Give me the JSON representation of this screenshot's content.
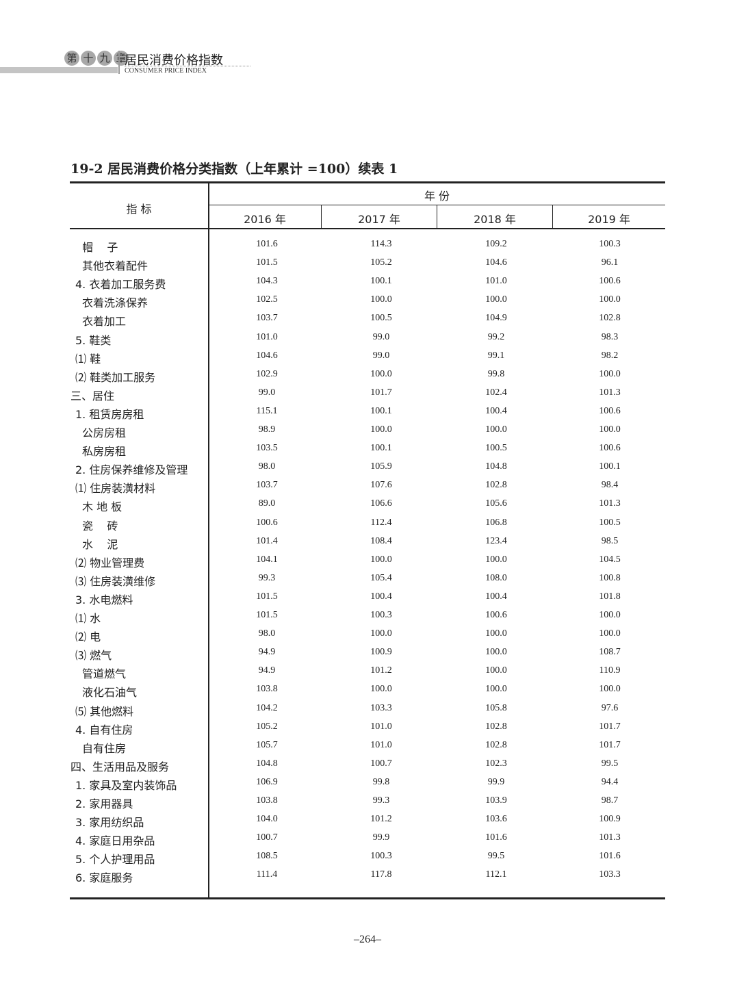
{
  "header": {
    "chapter_chars": [
      "第",
      "十",
      "九",
      "章"
    ],
    "chapter_title": "居民消费价格指数",
    "chapter_title_en": "CONSUMER PRICE INDEX"
  },
  "table": {
    "title": "19-2  居民消费价格分类指数（上年累计 =100）续表 1",
    "indicator_header": "指  标",
    "year_group_header": "年  份",
    "years": [
      "2016 年",
      "2017 年",
      "2018 年",
      "2019 年"
    ],
    "rows": [
      {
        "label": "帽    子",
        "level": 2,
        "values": [
          "101.6",
          "114.3",
          "109.2",
          "100.3"
        ]
      },
      {
        "label": "其他衣着配件",
        "level": 2,
        "values": [
          "101.5",
          "105.2",
          "104.6",
          "96.1"
        ]
      },
      {
        "label": "4. 衣着加工服务费",
        "level": 1,
        "values": [
          "104.3",
          "100.1",
          "101.0",
          "100.6"
        ]
      },
      {
        "label": "衣着洗涤保养",
        "level": 2,
        "values": [
          "102.5",
          "100.0",
          "100.0",
          "100.0"
        ]
      },
      {
        "label": "衣着加工",
        "level": 2,
        "values": [
          "103.7",
          "100.5",
          "104.9",
          "102.8"
        ]
      },
      {
        "label": "5. 鞋类",
        "level": 1,
        "values": [
          "101.0",
          "99.0",
          "99.2",
          "98.3"
        ]
      },
      {
        "label": "⑴ 鞋",
        "level": 1,
        "values": [
          "104.6",
          "99.0",
          "99.1",
          "98.2"
        ]
      },
      {
        "label": "⑵ 鞋类加工服务",
        "level": 1,
        "values": [
          "102.9",
          "100.0",
          "99.8",
          "100.0"
        ]
      },
      {
        "label": "三、居住",
        "level": 0,
        "values": [
          "99.0",
          "101.7",
          "102.4",
          "101.3"
        ]
      },
      {
        "label": "1. 租赁房房租",
        "level": 1,
        "values": [
          "115.1",
          "100.1",
          "100.4",
          "100.6"
        ]
      },
      {
        "label": "公房房租",
        "level": 2,
        "values": [
          "98.9",
          "100.0",
          "100.0",
          "100.0"
        ]
      },
      {
        "label": "私房房租",
        "level": 2,
        "values": [
          "103.5",
          "100.1",
          "100.5",
          "100.6"
        ]
      },
      {
        "label": "2. 住房保养维修及管理",
        "level": 1,
        "values": [
          "98.0",
          "105.9",
          "104.8",
          "100.1"
        ]
      },
      {
        "label": "⑴ 住房装潢材料",
        "level": 1,
        "values": [
          "103.7",
          "107.6",
          "102.8",
          "98.4"
        ]
      },
      {
        "label": "木 地 板",
        "level": 2,
        "values": [
          "89.0",
          "106.6",
          "105.6",
          "101.3"
        ]
      },
      {
        "label": "瓷    砖",
        "level": 2,
        "values": [
          "100.6",
          "112.4",
          "106.8",
          "100.5"
        ]
      },
      {
        "label": "水    泥",
        "level": 2,
        "values": [
          "101.4",
          "108.4",
          "123.4",
          "98.5"
        ]
      },
      {
        "label": "⑵ 物业管理费",
        "level": 1,
        "values": [
          "104.1",
          "100.0",
          "100.0",
          "104.5"
        ]
      },
      {
        "label": "⑶ 住房装潢维修",
        "level": 1,
        "values": [
          "99.3",
          "105.4",
          "108.0",
          "100.8"
        ]
      },
      {
        "label": "3. 水电燃料",
        "level": 1,
        "values": [
          "101.5",
          "100.4",
          "100.4",
          "101.8"
        ]
      },
      {
        "label": "⑴ 水",
        "level": 1,
        "values": [
          "101.5",
          "100.3",
          "100.6",
          "100.0"
        ]
      },
      {
        "label": "⑵ 电",
        "level": 1,
        "values": [
          "98.0",
          "100.0",
          "100.0",
          "100.0"
        ]
      },
      {
        "label": "⑶ 燃气",
        "level": 1,
        "values": [
          "94.9",
          "100.9",
          "100.0",
          "108.7"
        ]
      },
      {
        "label": "管道燃气",
        "level": 2,
        "values": [
          "94.9",
          "101.2",
          "100.0",
          "110.9"
        ]
      },
      {
        "label": "液化石油气",
        "level": 2,
        "values": [
          "103.8",
          "100.0",
          "100.0",
          "100.0"
        ]
      },
      {
        "label": "⑸ 其他燃料",
        "level": 1,
        "values": [
          "104.2",
          "103.3",
          "105.8",
          "97.6"
        ]
      },
      {
        "label": "4. 自有住房",
        "level": 1,
        "values": [
          "105.2",
          "101.0",
          "102.8",
          "101.7"
        ]
      },
      {
        "label": "自有住房",
        "level": 2,
        "values": [
          "105.7",
          "101.0",
          "102.8",
          "101.7"
        ]
      },
      {
        "label": "四、生活用品及服务",
        "level": 0,
        "values": [
          "104.8",
          "100.7",
          "102.3",
          "99.5"
        ]
      },
      {
        "label": "1. 家具及室内装饰品",
        "level": 1,
        "values": [
          "106.9",
          "99.8",
          "99.9",
          "94.4"
        ]
      },
      {
        "label": "2. 家用器具",
        "level": 1,
        "values": [
          "103.8",
          "99.3",
          "103.9",
          "98.7"
        ]
      },
      {
        "label": "3. 家用纺织品",
        "level": 1,
        "values": [
          "104.0",
          "101.2",
          "103.6",
          "100.9"
        ]
      },
      {
        "label": "4. 家庭日用杂品",
        "level": 1,
        "values": [
          "100.7",
          "99.9",
          "101.6",
          "101.3"
        ]
      },
      {
        "label": "5. 个人护理用品",
        "level": 1,
        "values": [
          "108.5",
          "100.3",
          "99.5",
          "101.6"
        ]
      },
      {
        "label": "6. 家庭服务",
        "level": 1,
        "values": [
          "111.4",
          "117.8",
          "112.1",
          "103.3"
        ]
      }
    ]
  },
  "footer": {
    "page_number": "–264–"
  }
}
